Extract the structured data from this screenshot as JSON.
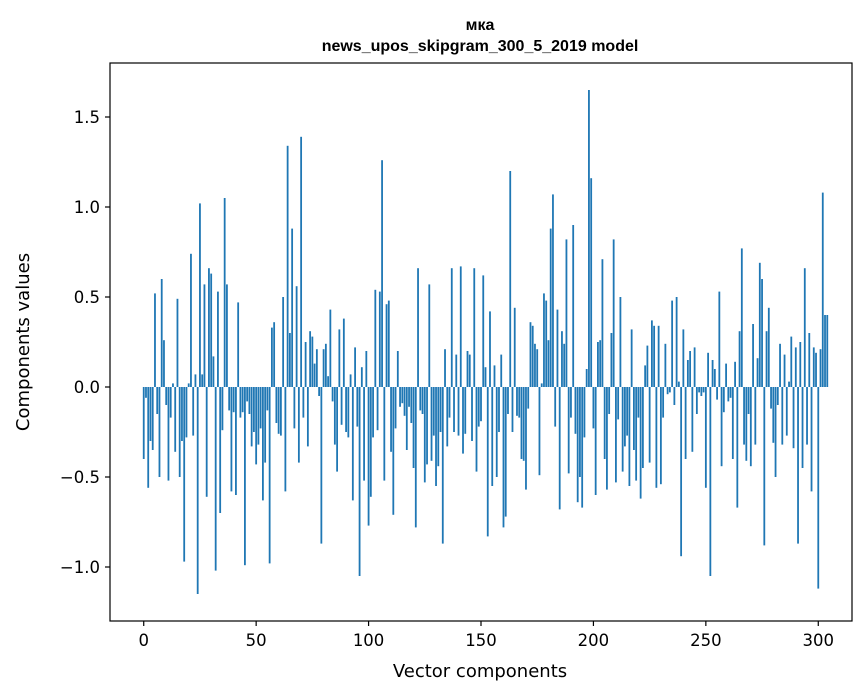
{
  "colors": {
    "bar": "#1f77b4",
    "axes": "#000000",
    "background": "#ffffff"
  },
  "chart_data": {
    "type": "bar",
    "title": "мка",
    "subtitle": "news_upos_skipgram_300_5_2019 model",
    "xlabel": "Vector components",
    "ylabel": "Components values",
    "xlim": [
      -15,
      315
    ],
    "ylim": [
      -1.3,
      1.8
    ],
    "xticks": [
      0,
      50,
      100,
      150,
      200,
      250,
      300
    ],
    "xtick_labels": [
      "0",
      "50",
      "100",
      "150",
      "200",
      "250",
      "300"
    ],
    "yticks": [
      -1.0,
      -0.5,
      0.0,
      0.5,
      1.0,
      1.5
    ],
    "ytick_labels": [
      "−1.0",
      "−0.5",
      "0.0",
      "0.5",
      "1.0",
      "1.5"
    ],
    "grid": false,
    "x_start": 0,
    "values": [
      -0.4,
      -0.06,
      -0.56,
      -0.3,
      -0.35,
      0.52,
      -0.15,
      -0.5,
      0.6,
      0.26,
      -0.1,
      -0.52,
      -0.17,
      0.02,
      -0.36,
      0.49,
      -0.5,
      -0.3,
      -0.97,
      -0.28,
      0.02,
      0.74,
      -0.27,
      0.07,
      -1.15,
      1.02,
      0.07,
      0.57,
      -0.61,
      0.66,
      0.63,
      0.17,
      -1.02,
      0.53,
      -0.7,
      -0.24,
      1.05,
      0.57,
      -0.13,
      -0.58,
      -0.14,
      -0.6,
      0.47,
      -0.17,
      -0.14,
      -0.99,
      -0.08,
      -0.15,
      -0.33,
      -0.25,
      -0.43,
      -0.32,
      -0.23,
      -0.63,
      -0.42,
      -0.13,
      -0.98,
      0.33,
      0.36,
      -0.2,
      -0.26,
      -0.27,
      0.5,
      -0.58,
      1.34,
      0.3,
      0.88,
      -0.23,
      0.56,
      -0.42,
      1.39,
      -0.17,
      0.25,
      -0.33,
      0.31,
      0.28,
      0.13,
      0.21,
      -0.05,
      -0.87,
      0.21,
      0.24,
      0.06,
      0.43,
      -0.08,
      -0.32,
      -0.47,
      0.32,
      -0.21,
      0.38,
      -0.25,
      -0.28,
      0.07,
      -0.63,
      0.22,
      -0.22,
      -1.05,
      0.11,
      -0.52,
      0.2,
      -0.77,
      -0.61,
      -0.28,
      0.54,
      -0.24,
      0.53,
      1.26,
      -0.52,
      0.46,
      0.48,
      -0.36,
      -0.71,
      -0.23,
      0.2,
      -0.11,
      -0.09,
      -0.16,
      -0.35,
      -0.11,
      -0.2,
      -0.45,
      -0.78,
      0.66,
      -0.13,
      -0.15,
      -0.53,
      -0.43,
      0.57,
      -0.41,
      -0.27,
      -0.55,
      -0.44,
      -0.25,
      -0.87,
      0.21,
      -0.33,
      -0.17,
      0.66,
      -0.25,
      0.18,
      -0.27,
      0.67,
      -0.37,
      -0.26,
      0.2,
      0.18,
      -0.3,
      0.66,
      -0.47,
      -0.22,
      -0.19,
      0.62,
      0.11,
      -0.83,
      0.42,
      -0.55,
      0.12,
      -0.5,
      -0.25,
      0.18,
      -0.78,
      -0.72,
      -0.15,
      1.2,
      -0.25,
      0.44,
      -0.16,
      -0.17,
      -0.4,
      -0.41,
      -0.57,
      -0.12,
      0.36,
      0.34,
      0.24,
      0.21,
      -0.49,
      0.02,
      0.52,
      0.48,
      0.26,
      0.88,
      1.07,
      -0.22,
      0.43,
      -0.68,
      0.31,
      0.24,
      0.82,
      -0.48,
      -0.17,
      0.9,
      -0.26,
      -0.64,
      -0.5,
      -0.67,
      -0.28,
      0.1,
      1.65,
      1.16,
      -0.23,
      -0.6,
      0.25,
      0.26,
      0.71,
      -0.4,
      -0.57,
      -0.15,
      0.3,
      0.82,
      -0.53,
      -0.18,
      0.5,
      -0.47,
      -0.33,
      -0.27,
      -0.55,
      0.32,
      -0.35,
      -0.52,
      -0.17,
      -0.62,
      -0.45,
      0.12,
      0.23,
      -0.42,
      0.37,
      0.34,
      -0.56,
      0.34,
      -0.54,
      -0.17,
      0.24,
      -0.04,
      -0.03,
      0.48,
      -0.1,
      0.5,
      0.03,
      -0.94,
      0.32,
      -0.4,
      0.15,
      0.2,
      -0.36,
      0.22,
      -0.15,
      -0.03,
      -0.05,
      -0.03,
      -0.56,
      0.19,
      -1.05,
      0.15,
      0.1,
      -0.07,
      0.53,
      -0.44,
      -0.14,
      0.13,
      -0.08,
      -0.06,
      -0.4,
      0.14,
      -0.67,
      0.31,
      0.77,
      -0.32,
      -0.41,
      -0.15,
      -0.44,
      0.35,
      -0.32,
      0.16,
      0.69,
      0.6,
      -0.88,
      0.31,
      0.44,
      -0.12,
      -0.31,
      -0.5,
      -0.1,
      0.24,
      -0.32,
      0.18,
      -0.27,
      0.03,
      0.28,
      -0.34,
      0.22,
      -0.87,
      0.25,
      -0.45,
      0.66,
      -0.32,
      0.3,
      -0.58,
      0.22,
      0.19,
      -1.12,
      0.21,
      1.08,
      0.4,
      0.4
    ]
  }
}
